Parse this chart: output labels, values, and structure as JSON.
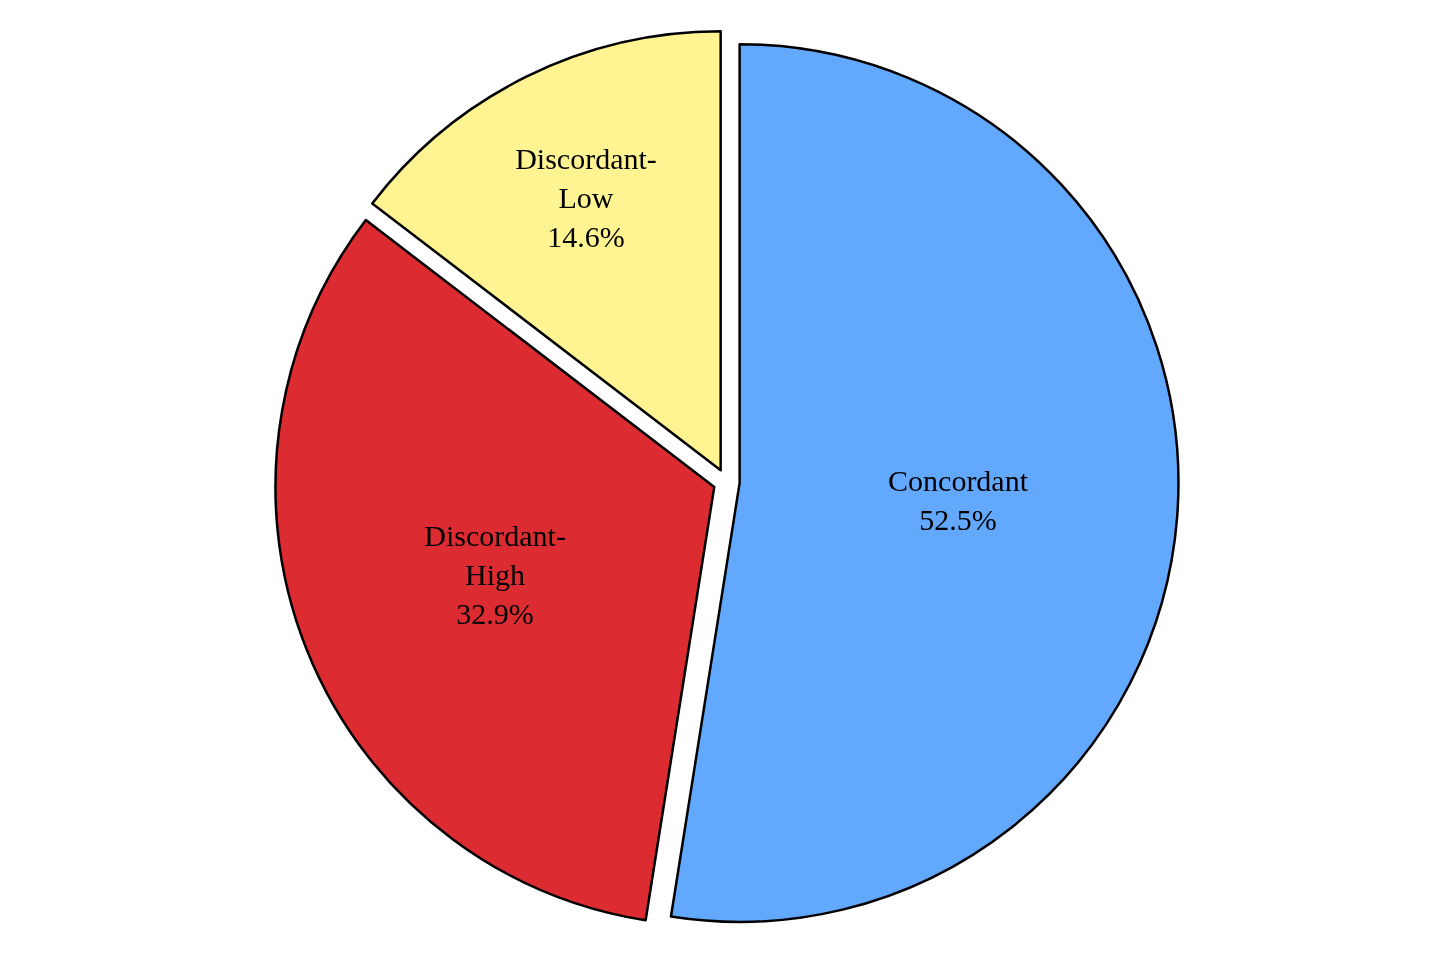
{
  "chart_data": {
    "type": "pie",
    "categories": [
      "Concordant",
      "Discordant-High",
      "Discordant-Low"
    ],
    "values": [
      52.5,
      32.9,
      14.6
    ],
    "value_labels": [
      "52.5%",
      "32.9%",
      "14.6%"
    ],
    "colors": [
      "#62a8fd",
      "#dc2c32",
      "#fff491"
    ],
    "legend": false
  }
}
